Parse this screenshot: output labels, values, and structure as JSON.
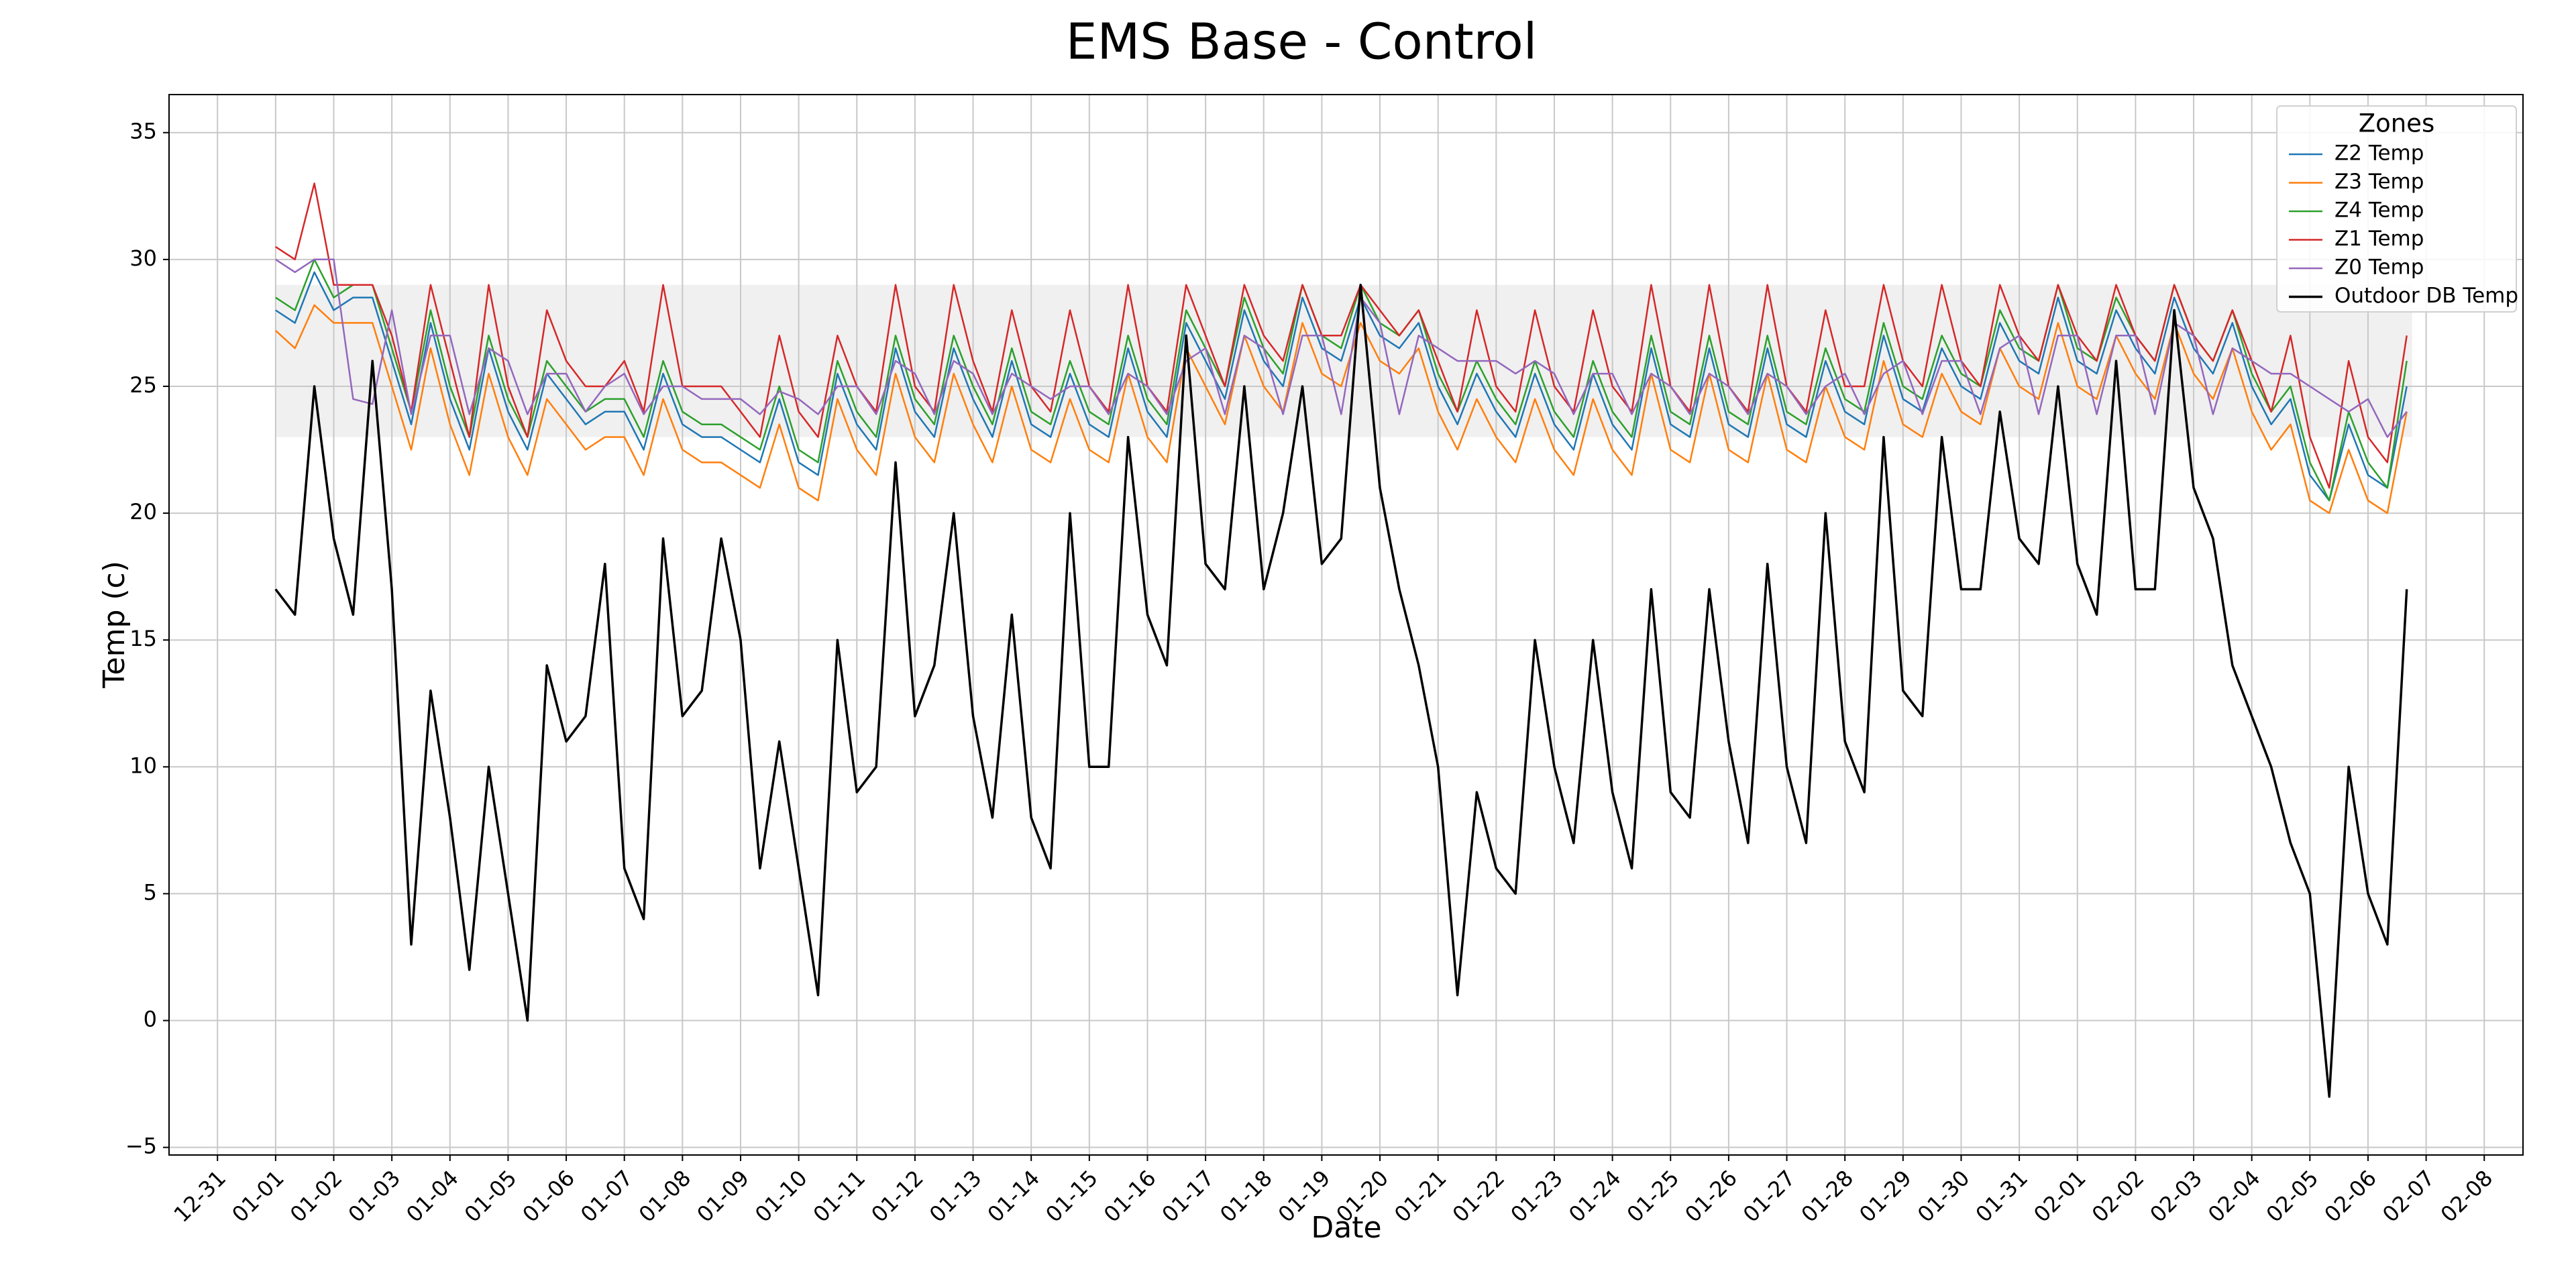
{
  "chart_data": {
    "type": "line",
    "title": "EMS Base - Control",
    "xlabel": "Date",
    "ylabel": "Temp (c)",
    "legend_title": "Zones",
    "legend": "upper right",
    "grid": true,
    "band": {
      "ymin": 23,
      "ymax": 29,
      "color": "#f0f0f0"
    },
    "xlim": [
      "12-30 04:00",
      "02-08 16:00"
    ],
    "xticks": [
      "12-31",
      "01-01",
      "01-02",
      "01-03",
      "01-04",
      "01-05",
      "01-06",
      "01-07",
      "01-08",
      "01-09",
      "01-10",
      "01-11",
      "01-12",
      "01-13",
      "01-14",
      "01-15",
      "01-16",
      "01-17",
      "01-18",
      "01-19",
      "01-20",
      "01-21",
      "01-22",
      "01-23",
      "01-24",
      "01-25",
      "01-26",
      "01-27",
      "01-28",
      "01-29",
      "01-30",
      "01-31",
      "02-01",
      "02-02",
      "02-03",
      "02-04",
      "02-05",
      "02-06",
      "02-07",
      "02-08"
    ],
    "ylim": [
      -5.3,
      36.5
    ],
    "yticks": [
      {
        "value": -5,
        "label": "−5"
      },
      0,
      5,
      10,
      15,
      20,
      25,
      30,
      35
    ],
    "x": [
      "01-01 00:00",
      "01-01 08:00",
      "01-01 16:00",
      "01-02 00:00",
      "01-02 08:00",
      "01-02 16:00",
      "01-03 00:00",
      "01-03 08:00",
      "01-03 16:00",
      "01-04 00:00",
      "01-04 08:00",
      "01-04 16:00",
      "01-05 00:00",
      "01-05 08:00",
      "01-05 16:00",
      "01-06 00:00",
      "01-06 08:00",
      "01-06 16:00",
      "01-07 00:00",
      "01-07 08:00",
      "01-07 16:00",
      "01-08 00:00",
      "01-08 08:00",
      "01-08 16:00",
      "01-09 00:00",
      "01-09 08:00",
      "01-09 16:00",
      "01-10 00:00",
      "01-10 08:00",
      "01-10 16:00",
      "01-11 00:00",
      "01-11 08:00",
      "01-11 16:00",
      "01-12 00:00",
      "01-12 08:00",
      "01-12 16:00",
      "01-13 00:00",
      "01-13 08:00",
      "01-13 16:00",
      "01-14 00:00",
      "01-14 08:00",
      "01-14 16:00",
      "01-15 00:00",
      "01-15 08:00",
      "01-15 16:00",
      "01-16 00:00",
      "01-16 08:00",
      "01-16 16:00",
      "01-17 00:00",
      "01-17 08:00",
      "01-17 16:00",
      "01-18 00:00",
      "01-18 08:00",
      "01-18 16:00",
      "01-19 00:00",
      "01-19 08:00",
      "01-19 16:00",
      "01-20 00:00",
      "01-20 08:00",
      "01-20 16:00",
      "01-21 00:00",
      "01-21 08:00",
      "01-21 16:00",
      "01-22 00:00",
      "01-22 08:00",
      "01-22 16:00",
      "01-23 00:00",
      "01-23 08:00",
      "01-23 16:00",
      "01-24 00:00",
      "01-24 08:00",
      "01-24 16:00",
      "01-25 00:00",
      "01-25 08:00",
      "01-25 16:00",
      "01-26 00:00",
      "01-26 08:00",
      "01-26 16:00",
      "01-27 00:00",
      "01-27 08:00",
      "01-27 16:00",
      "01-28 00:00",
      "01-28 08:00",
      "01-28 16:00",
      "01-29 00:00",
      "01-29 08:00",
      "01-29 16:00",
      "01-30 00:00",
      "01-30 08:00",
      "01-30 16:00",
      "01-31 00:00",
      "01-31 08:00",
      "01-31 16:00",
      "02-01 00:00",
      "02-01 08:00",
      "02-01 16:00",
      "02-02 00:00",
      "02-02 08:00",
      "02-02 16:00",
      "02-03 00:00",
      "02-03 08:00",
      "02-03 16:00",
      "02-04 00:00",
      "02-04 08:00",
      "02-04 16:00",
      "02-05 00:00",
      "02-05 08:00",
      "02-05 16:00",
      "02-06 00:00",
      "02-06 08:00",
      "02-06 16:00"
    ],
    "series": [
      {
        "name": "Z2 Temp",
        "color": "#1f77b4",
        "values": [
          28,
          27.5,
          29.5,
          28,
          28.5,
          28.5,
          26,
          23.5,
          27.5,
          24.5,
          22.5,
          26.5,
          24,
          22.5,
          25.5,
          24.5,
          23.5,
          24,
          24,
          22.5,
          25.5,
          23.5,
          23,
          23,
          22.5,
          22,
          24.5,
          22,
          21.5,
          25.5,
          23.5,
          22.5,
          26.5,
          24,
          23,
          26.5,
          24.5,
          23,
          26,
          23.5,
          23,
          25.5,
          23.5,
          23,
          26.5,
          24,
          23,
          27.5,
          26,
          24.5,
          28,
          26,
          25,
          28.5,
          26.5,
          26,
          28.5,
          27,
          26.5,
          27.5,
          25,
          23.5,
          25.5,
          24,
          23,
          25.5,
          23.5,
          22.5,
          25.5,
          23.5,
          22.5,
          26.5,
          23.5,
          23,
          26.5,
          23.5,
          23,
          26.5,
          23.5,
          23,
          26,
          24,
          23.5,
          27,
          24.5,
          24,
          26.5,
          25,
          24.5,
          27.5,
          26,
          25.5,
          28.5,
          26,
          25.5,
          28,
          26.5,
          25.5,
          28.5,
          26.5,
          25.5,
          27.5,
          25,
          23.5,
          24.5,
          21.5,
          20.5,
          23.5,
          21.5,
          21,
          25
        ]
      },
      {
        "name": "Z3 Temp",
        "color": "#ff7f0e",
        "values": [
          27.2,
          26.5,
          28.2,
          27.5,
          27.5,
          27.5,
          25,
          22.5,
          26.5,
          23.5,
          21.5,
          25.5,
          23,
          21.5,
          24.5,
          23.5,
          22.5,
          23,
          23,
          21.5,
          24.5,
          22.5,
          22,
          22,
          21.5,
          21,
          23.5,
          21,
          20.5,
          24.5,
          22.5,
          21.5,
          25.5,
          23,
          22,
          25.5,
          23.5,
          22,
          25,
          22.5,
          22,
          24.5,
          22.5,
          22,
          25.5,
          23,
          22,
          26.5,
          25,
          23.5,
          27,
          25,
          24,
          27.5,
          25.5,
          25,
          27.5,
          26,
          25.5,
          26.5,
          24,
          22.5,
          24.5,
          23,
          22,
          24.5,
          22.5,
          21.5,
          24.5,
          22.5,
          21.5,
          25.5,
          22.5,
          22,
          25.5,
          22.5,
          22,
          25.5,
          22.5,
          22,
          25,
          23,
          22.5,
          26,
          23.5,
          23,
          25.5,
          24,
          23.5,
          26.5,
          25,
          24.5,
          27.5,
          25,
          24.5,
          27,
          25.5,
          24.5,
          27.5,
          25.5,
          24.5,
          26.5,
          24,
          22.5,
          23.5,
          20.5,
          20,
          22.5,
          20.5,
          20,
          24
        ]
      },
      {
        "name": "Z4 Temp",
        "color": "#2ca02c",
        "values": [
          28.5,
          28,
          30,
          28.5,
          29,
          29,
          26.5,
          24,
          28,
          25,
          23,
          27,
          24.5,
          23,
          26,
          25,
          24,
          24.5,
          24.5,
          23,
          26,
          24,
          23.5,
          23.5,
          23,
          22.5,
          25,
          22.5,
          22,
          26,
          24,
          23,
          27,
          24.5,
          23.5,
          27,
          25,
          23.5,
          26.5,
          24,
          23.5,
          26,
          24,
          23.5,
          27,
          24.5,
          23.5,
          28,
          26.5,
          25,
          28.5,
          26.5,
          25.5,
          29,
          27,
          26.5,
          29,
          27.5,
          27,
          28,
          25.5,
          24,
          26,
          24.5,
          23.5,
          26,
          24,
          23,
          26,
          24,
          23,
          27,
          24,
          23.5,
          27,
          24,
          23.5,
          27,
          24,
          23.5,
          26.5,
          24.5,
          24,
          27.5,
          25,
          24.5,
          27,
          25.5,
          25,
          28,
          26.5,
          26,
          29,
          26.5,
          26,
          28.5,
          27,
          26,
          29,
          27,
          26,
          28,
          25.5,
          24,
          25,
          22,
          20.5,
          24,
          22,
          21,
          26
        ]
      },
      {
        "name": "Z1 Temp",
        "color": "#d62728",
        "values": [
          30.5,
          30,
          33,
          29,
          29,
          29,
          27,
          24,
          29,
          26,
          23,
          29,
          25,
          23,
          28,
          26,
          25,
          25,
          26,
          24,
          29,
          25,
          25,
          25,
          24,
          23,
          27,
          24,
          23,
          27,
          25,
          24,
          29,
          25,
          24,
          29,
          26,
          24,
          28,
          25,
          24,
          28,
          25,
          24,
          29,
          25,
          24,
          29,
          27,
          25,
          29,
          27,
          26,
          29,
          27,
          27,
          29,
          28,
          27,
          28,
          26,
          24,
          28,
          25,
          24,
          28,
          25,
          24,
          28,
          25,
          24,
          29,
          25,
          24,
          29,
          25,
          24,
          29,
          25,
          24,
          28,
          25,
          25,
          29,
          26,
          25,
          29,
          26,
          25,
          29,
          27,
          26,
          29,
          27,
          26,
          29,
          27,
          26,
          29,
          27,
          26,
          28,
          26,
          24,
          27,
          23,
          21,
          26,
          23,
          22,
          27
        ]
      },
      {
        "name": "Z0 Temp",
        "color": "#9467bd",
        "values": [
          30,
          29.5,
          30,
          30,
          24.5,
          24.3,
          28,
          23.9,
          27,
          27,
          23.9,
          26.5,
          26,
          23.9,
          25.5,
          25.5,
          24,
          25,
          25.5,
          23.9,
          25,
          25,
          24.5,
          24.5,
          24.5,
          23.9,
          24.8,
          24.5,
          23.9,
          25,
          25,
          23.9,
          26,
          25.5,
          23.9,
          26,
          25.5,
          23.9,
          25.5,
          25,
          24.5,
          25,
          25,
          23.9,
          25.5,
          25,
          23.9,
          26,
          26.5,
          23.9,
          27,
          26.5,
          23.9,
          27,
          27,
          23.9,
          28.5,
          27.5,
          23.9,
          27,
          26.5,
          26,
          26,
          26,
          25.5,
          26,
          25.5,
          23.9,
          25.5,
          25.5,
          23.9,
          25.5,
          25,
          23.9,
          25.5,
          25,
          23.9,
          25.5,
          25,
          23.9,
          25,
          25.5,
          23.9,
          25.5,
          26,
          23.9,
          26,
          26,
          23.9,
          26.5,
          27,
          23.9,
          27,
          27,
          23.9,
          27,
          27,
          23.9,
          27.5,
          27,
          23.9,
          26.5,
          26,
          25.5,
          25.5,
          25,
          24.5,
          24,
          24.5,
          23,
          24
        ]
      },
      {
        "name": "Outdoor DB Temp",
        "color": "#000000",
        "values": [
          17,
          16,
          25,
          19,
          16,
          26,
          17,
          3,
          13,
          8,
          2,
          10,
          5,
          0,
          14,
          11,
          12,
          18,
          6,
          4,
          19,
          12,
          13,
          19,
          15,
          6,
          11,
          6,
          1,
          15,
          9,
          10,
          22,
          12,
          14,
          20,
          12,
          8,
          16,
          8,
          6,
          20,
          10,
          10,
          23,
          16,
          14,
          27,
          18,
          17,
          25,
          17,
          20,
          25,
          18,
          19,
          29,
          21,
          17,
          14,
          10,
          1,
          9,
          6,
          5,
          15,
          10,
          7,
          15,
          9,
          6,
          17,
          9,
          8,
          17,
          11,
          7,
          18,
          10,
          7,
          20,
          11,
          9,
          23,
          13,
          12,
          23,
          17,
          17,
          24,
          19,
          18,
          25,
          18,
          16,
          26,
          17,
          17,
          28,
          21,
          19,
          14,
          12,
          10,
          7,
          5,
          -3,
          10,
          5,
          3,
          17
        ]
      }
    ]
  }
}
